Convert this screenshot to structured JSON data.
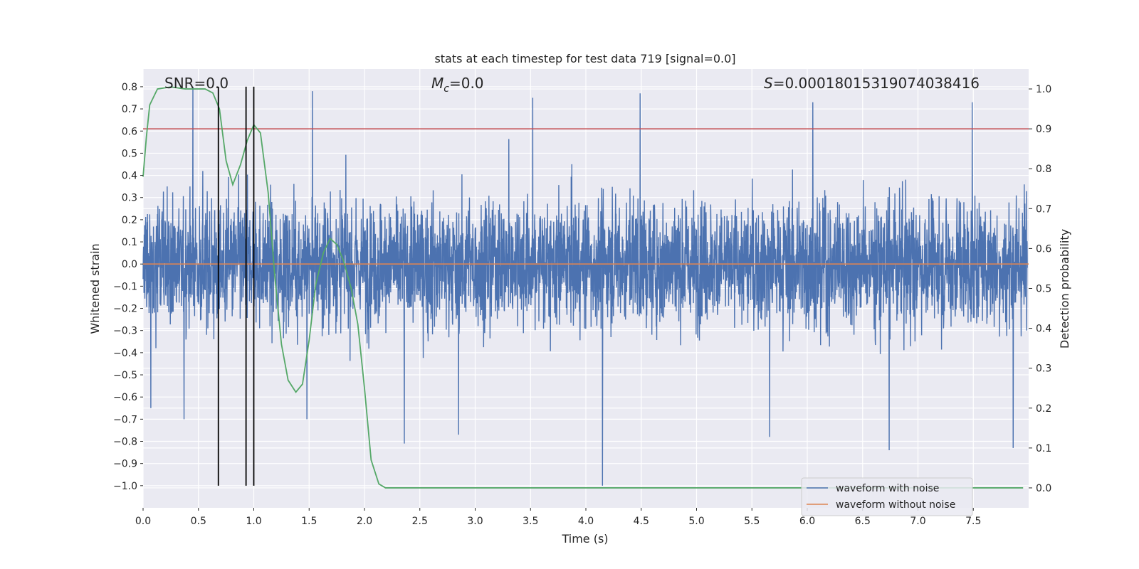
{
  "chart_data": {
    "type": "line",
    "title": "stats at each timestep for test data 719 [signal=0.0]",
    "xlabel": "Time (s)",
    "ylabel_left": "Whitened strain",
    "ylabel_right": "Detection probability",
    "xlim": [
      0.0,
      8.0
    ],
    "ylim_left": [
      -1.1,
      0.88
    ],
    "ylim_right": [
      -0.05,
      1.05
    ],
    "xticks": [
      "0.0",
      "0.5",
      "1.0",
      "1.5",
      "2.0",
      "2.5",
      "3.0",
      "3.5",
      "4.0",
      "4.5",
      "5.0",
      "5.5",
      "6.0",
      "6.5",
      "7.0",
      "7.5"
    ],
    "xtick_values": [
      0.0,
      0.5,
      1.0,
      1.5,
      2.0,
      2.5,
      3.0,
      3.5,
      4.0,
      4.5,
      5.0,
      5.5,
      6.0,
      6.5,
      7.0,
      7.5
    ],
    "yticks_left": [
      "0.8",
      "0.7",
      "0.6",
      "0.5",
      "0.4",
      "0.3",
      "0.2",
      "0.1",
      "0.0",
      "−0.1",
      "−0.2",
      "−0.3",
      "−0.4",
      "−0.5",
      "−0.6",
      "−0.7",
      "−0.8",
      "−0.9",
      "−1.0"
    ],
    "ytick_values_left": [
      0.8,
      0.7,
      0.6,
      0.5,
      0.4,
      0.3,
      0.2,
      0.1,
      0.0,
      -0.1,
      -0.2,
      -0.3,
      -0.4,
      -0.5,
      -0.6,
      -0.7,
      -0.8,
      -0.9,
      -1.0
    ],
    "yticks_right": [
      "1.0",
      "0.9",
      "0.8",
      "0.7",
      "0.6",
      "0.5",
      "0.4",
      "0.3",
      "0.2",
      "0.1",
      "0.0"
    ],
    "ytick_values_right": [
      1.0,
      0.9,
      0.8,
      0.7,
      0.6,
      0.5,
      0.4,
      0.3,
      0.2,
      0.1,
      0.0
    ],
    "annotations": {
      "snr": "SNR=0.0",
      "mc_symbol": "M",
      "mc_sub": "c",
      "mc_value": "=0.0",
      "s_symbol": "S",
      "s_value": "=0.00018015319074038416"
    },
    "series": [
      {
        "name": "waveform with noise",
        "color": "#4c72b0",
        "description": "whitened noisy strain, dense noise mostly within ±0.45, peaks to about ±0.8",
        "envelope_typical": 0.42,
        "spikes": [
          {
            "x": 0.45,
            "y": 0.8
          },
          {
            "x": 0.07,
            "y": -0.65
          },
          {
            "x": 0.37,
            "y": -0.7
          },
          {
            "x": 1.53,
            "y": 0.78
          },
          {
            "x": 2.36,
            "y": -0.81
          },
          {
            "x": 2.85,
            "y": -0.77
          },
          {
            "x": 3.52,
            "y": 0.75
          },
          {
            "x": 4.15,
            "y": -1.0
          },
          {
            "x": 4.49,
            "y": 0.77
          },
          {
            "x": 5.66,
            "y": -0.78
          },
          {
            "x": 6.05,
            "y": 0.73
          },
          {
            "x": 6.74,
            "y": -0.84
          },
          {
            "x": 7.49,
            "y": 0.73
          },
          {
            "x": 7.86,
            "y": -0.83
          },
          {
            "x": 1.48,
            "y": -0.7
          }
        ]
      },
      {
        "name": "waveform without noise",
        "color": "#dd8452",
        "x": [
          0.0,
          8.0
        ],
        "values": [
          0.0,
          0.0
        ]
      },
      {
        "name": "detection probability",
        "color": "#55a868",
        "axis": "right",
        "x": [
          0.0,
          0.03,
          0.06,
          0.13,
          0.25,
          0.38,
          0.5,
          0.56,
          0.63,
          0.69,
          0.75,
          0.81,
          0.88,
          0.94,
          1.0,
          1.06,
          1.13,
          1.19,
          1.25,
          1.31,
          1.38,
          1.44,
          1.5,
          1.56,
          1.63,
          1.69,
          1.75,
          1.81,
          1.88,
          1.94,
          2.0,
          2.06,
          2.13,
          2.19,
          2.5,
          3.0,
          3.5,
          4.0,
          4.5,
          5.0,
          5.5,
          6.0,
          6.5,
          7.0,
          7.5,
          7.95
        ],
        "values": [
          0.78,
          0.88,
          0.96,
          1.0,
          1.005,
          1.0,
          1.0,
          1.0,
          0.99,
          0.95,
          0.82,
          0.76,
          0.81,
          0.87,
          0.91,
          0.89,
          0.74,
          0.53,
          0.36,
          0.27,
          0.24,
          0.26,
          0.37,
          0.51,
          0.59,
          0.625,
          0.61,
          0.57,
          0.5,
          0.41,
          0.25,
          0.07,
          0.01,
          0.0,
          0.0,
          0.0,
          0.0,
          0.0,
          0.0,
          0.0,
          0.0,
          0.0,
          0.0,
          0.0,
          0.0,
          0.0
        ]
      }
    ],
    "hlines": [
      {
        "name": "threshold",
        "axis": "right",
        "value": 0.9,
        "color": "#c44e52"
      }
    ],
    "vlines": [
      0.68,
      0.93,
      1.0
    ],
    "legend": {
      "location": "lower-right",
      "entries": [
        "waveform with noise",
        "waveform without noise"
      ]
    },
    "background": "#eaeaf2",
    "grid": true
  }
}
